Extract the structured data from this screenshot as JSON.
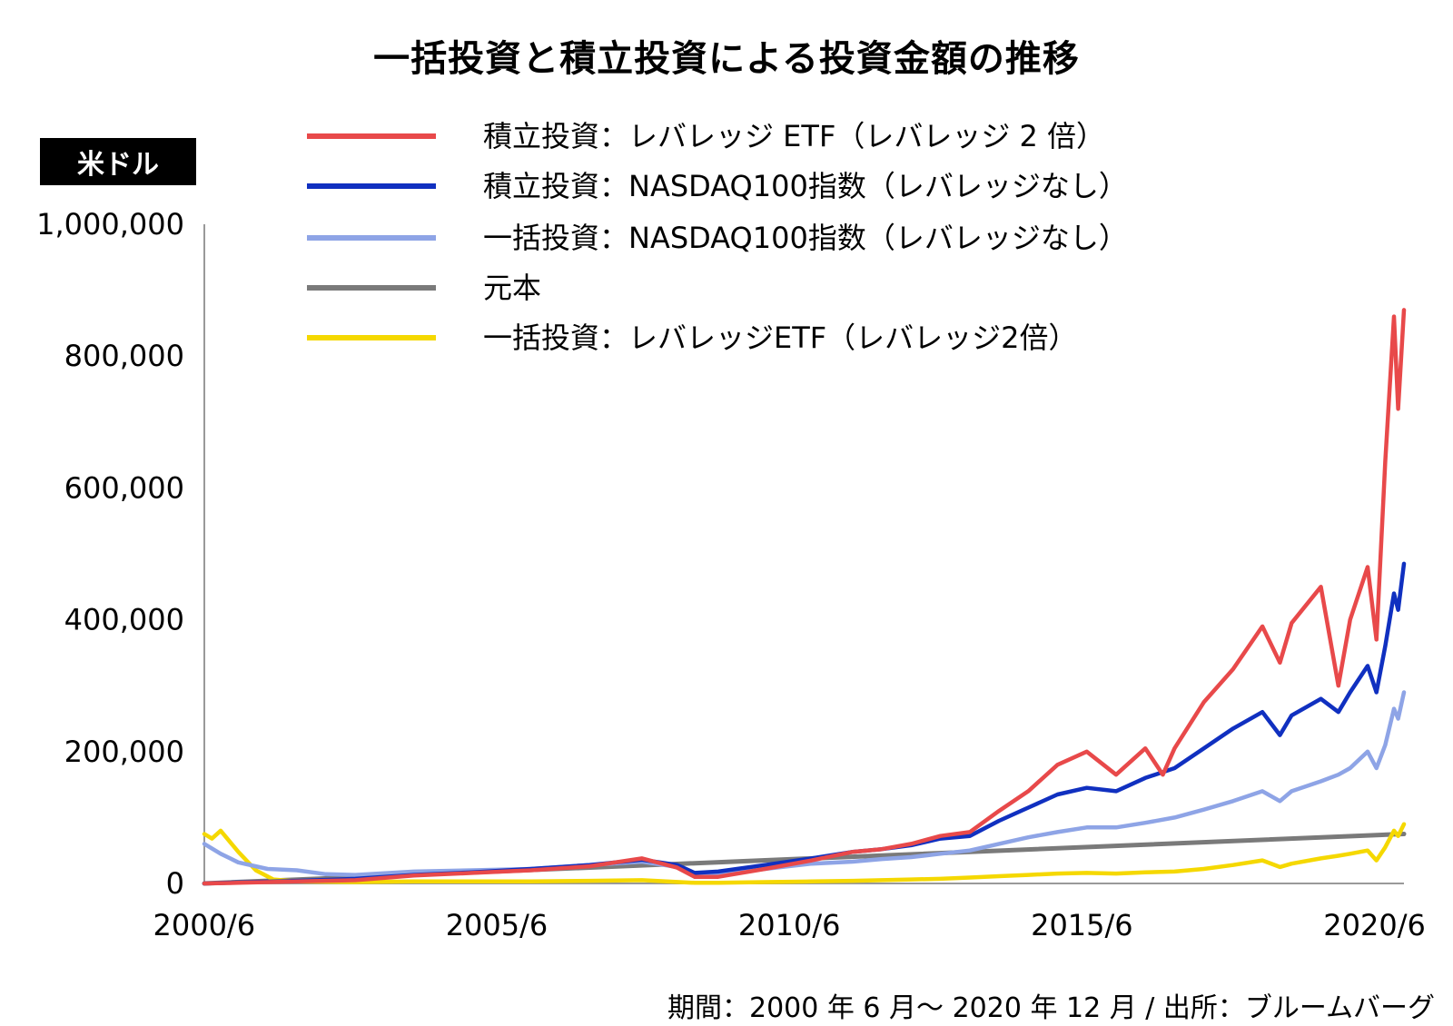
{
  "chart_data": {
    "type": "line",
    "title": "一括投資と積立投資による投資金額の推移",
    "ylabel": "米ドル",
    "ylim": [
      0,
      1000000
    ],
    "y_ticks": [
      "1,000,000",
      "800,000",
      "600,000",
      "400,000",
      "200,000",
      "0"
    ],
    "x_ticks": [
      "2000/6",
      "2005/6",
      "2010/6",
      "2015/6",
      "2020/6"
    ],
    "xlim": [
      2000.42,
      2020.92
    ],
    "grid": false,
    "legend_position": "top",
    "note": "期間：2000 年 6 月〜 2020 年 12 月 / 出所：ブルームバーグ",
    "series": [
      {
        "name": "積立投資：レバレッジ ETF（レバレッジ 2 倍）",
        "color": "#e8494a",
        "points": [
          [
            2000.42,
            0
          ],
          [
            2001.0,
            1000
          ],
          [
            2002.0,
            3000
          ],
          [
            2003.0,
            5000
          ],
          [
            2004.0,
            12000
          ],
          [
            2005.0,
            16000
          ],
          [
            2006.0,
            20000
          ],
          [
            2007.0,
            26000
          ],
          [
            2007.9,
            38000
          ],
          [
            2008.5,
            24000
          ],
          [
            2008.8,
            10000
          ],
          [
            2009.2,
            10000
          ],
          [
            2010.0,
            22000
          ],
          [
            2010.8,
            35000
          ],
          [
            2011.5,
            48000
          ],
          [
            2012.0,
            52000
          ],
          [
            2012.5,
            60000
          ],
          [
            2013.0,
            72000
          ],
          [
            2013.5,
            78000
          ],
          [
            2014.0,
            110000
          ],
          [
            2014.5,
            140000
          ],
          [
            2015.0,
            180000
          ],
          [
            2015.5,
            200000
          ],
          [
            2016.0,
            165000
          ],
          [
            2016.5,
            205000
          ],
          [
            2016.8,
            165000
          ],
          [
            2017.0,
            205000
          ],
          [
            2017.5,
            275000
          ],
          [
            2018.0,
            325000
          ],
          [
            2018.5,
            390000
          ],
          [
            2018.8,
            335000
          ],
          [
            2019.0,
            395000
          ],
          [
            2019.5,
            450000
          ],
          [
            2019.8,
            300000
          ],
          [
            2020.0,
            400000
          ],
          [
            2020.3,
            480000
          ],
          [
            2020.45,
            370000
          ],
          [
            2020.6,
            640000
          ],
          [
            2020.75,
            860000
          ],
          [
            2020.82,
            720000
          ],
          [
            2020.92,
            870000
          ]
        ]
      },
      {
        "name": "積立投資：NASDAQ100指数（レバレッジなし）",
        "color": "#1030c0",
        "points": [
          [
            2000.42,
            0
          ],
          [
            2001.0,
            1500
          ],
          [
            2002.0,
            4000
          ],
          [
            2003.0,
            7000
          ],
          [
            2004.0,
            13000
          ],
          [
            2005.0,
            17000
          ],
          [
            2006.0,
            22000
          ],
          [
            2007.0,
            28000
          ],
          [
            2007.9,
            36000
          ],
          [
            2008.5,
            28000
          ],
          [
            2008.8,
            16000
          ],
          [
            2009.2,
            18000
          ],
          [
            2010.0,
            28000
          ],
          [
            2010.8,
            38000
          ],
          [
            2011.5,
            48000
          ],
          [
            2012.0,
            52000
          ],
          [
            2012.5,
            58000
          ],
          [
            2013.0,
            68000
          ],
          [
            2013.5,
            72000
          ],
          [
            2014.0,
            95000
          ],
          [
            2014.5,
            115000
          ],
          [
            2015.0,
            135000
          ],
          [
            2015.5,
            145000
          ],
          [
            2016.0,
            140000
          ],
          [
            2016.5,
            160000
          ],
          [
            2017.0,
            175000
          ],
          [
            2017.5,
            205000
          ],
          [
            2018.0,
            235000
          ],
          [
            2018.5,
            260000
          ],
          [
            2018.8,
            225000
          ],
          [
            2019.0,
            255000
          ],
          [
            2019.5,
            280000
          ],
          [
            2019.8,
            260000
          ],
          [
            2020.0,
            290000
          ],
          [
            2020.3,
            330000
          ],
          [
            2020.45,
            290000
          ],
          [
            2020.6,
            360000
          ],
          [
            2020.75,
            440000
          ],
          [
            2020.82,
            415000
          ],
          [
            2020.92,
            485000
          ]
        ]
      },
      {
        "name": "一括投資：NASDAQ100指数（レバレッジなし）",
        "color": "#8ea4e6",
        "points": [
          [
            2000.42,
            60000
          ],
          [
            2000.7,
            45000
          ],
          [
            2001.0,
            32000
          ],
          [
            2001.5,
            22000
          ],
          [
            2002.0,
            20000
          ],
          [
            2002.5,
            14000
          ],
          [
            2003.0,
            13000
          ],
          [
            2004.0,
            18000
          ],
          [
            2005.0,
            20000
          ],
          [
            2006.0,
            22000
          ],
          [
            2007.0,
            28000
          ],
          [
            2007.9,
            33000
          ],
          [
            2008.5,
            25000
          ],
          [
            2008.8,
            14000
          ],
          [
            2009.2,
            14000
          ],
          [
            2010.0,
            22000
          ],
          [
            2010.8,
            30000
          ],
          [
            2011.5,
            33000
          ],
          [
            2012.0,
            37000
          ],
          [
            2012.5,
            40000
          ],
          [
            2013.0,
            45000
          ],
          [
            2013.5,
            50000
          ],
          [
            2014.0,
            60000
          ],
          [
            2014.5,
            70000
          ],
          [
            2015.0,
            78000
          ],
          [
            2015.5,
            85000
          ],
          [
            2016.0,
            85000
          ],
          [
            2016.5,
            92000
          ],
          [
            2017.0,
            100000
          ],
          [
            2017.5,
            112000
          ],
          [
            2018.0,
            125000
          ],
          [
            2018.5,
            140000
          ],
          [
            2018.8,
            125000
          ],
          [
            2019.0,
            140000
          ],
          [
            2019.5,
            155000
          ],
          [
            2019.8,
            165000
          ],
          [
            2020.0,
            175000
          ],
          [
            2020.3,
            200000
          ],
          [
            2020.45,
            175000
          ],
          [
            2020.6,
            210000
          ],
          [
            2020.75,
            265000
          ],
          [
            2020.82,
            250000
          ],
          [
            2020.92,
            290000
          ]
        ]
      },
      {
        "name": "元本",
        "color": "#7a7a7a",
        "points": [
          [
            2000.42,
            0
          ],
          [
            2020.92,
            75000
          ]
        ]
      },
      {
        "name": "一括投資：レバレッジETF（レバレッジ2倍）",
        "color": "#f5d800",
        "points": [
          [
            2000.42,
            75000
          ],
          [
            2000.55,
            68000
          ],
          [
            2000.7,
            80000
          ],
          [
            2001.0,
            48000
          ],
          [
            2001.3,
            20000
          ],
          [
            2001.6,
            6000
          ],
          [
            2002.0,
            3000
          ],
          [
            2003.0,
            2000
          ],
          [
            2004.0,
            3000
          ],
          [
            2005.0,
            3000
          ],
          [
            2006.0,
            3000
          ],
          [
            2007.0,
            4000
          ],
          [
            2007.9,
            5000
          ],
          [
            2008.8,
            1000
          ],
          [
            2009.2,
            1000
          ],
          [
            2010.0,
            2000
          ],
          [
            2010.8,
            3000
          ],
          [
            2011.5,
            4000
          ],
          [
            2012.0,
            5000
          ],
          [
            2012.5,
            6000
          ],
          [
            2013.0,
            7000
          ],
          [
            2013.5,
            9000
          ],
          [
            2014.0,
            11000
          ],
          [
            2014.5,
            13000
          ],
          [
            2015.0,
            15000
          ],
          [
            2015.5,
            16000
          ],
          [
            2016.0,
            15000
          ],
          [
            2016.5,
            17000
          ],
          [
            2017.0,
            18000
          ],
          [
            2017.5,
            22000
          ],
          [
            2018.0,
            28000
          ],
          [
            2018.5,
            35000
          ],
          [
            2018.8,
            25000
          ],
          [
            2019.0,
            30000
          ],
          [
            2019.5,
            38000
          ],
          [
            2019.8,
            42000
          ],
          [
            2020.0,
            45000
          ],
          [
            2020.3,
            50000
          ],
          [
            2020.45,
            35000
          ],
          [
            2020.6,
            55000
          ],
          [
            2020.75,
            80000
          ],
          [
            2020.82,
            72000
          ],
          [
            2020.92,
            90000
          ]
        ]
      }
    ]
  }
}
